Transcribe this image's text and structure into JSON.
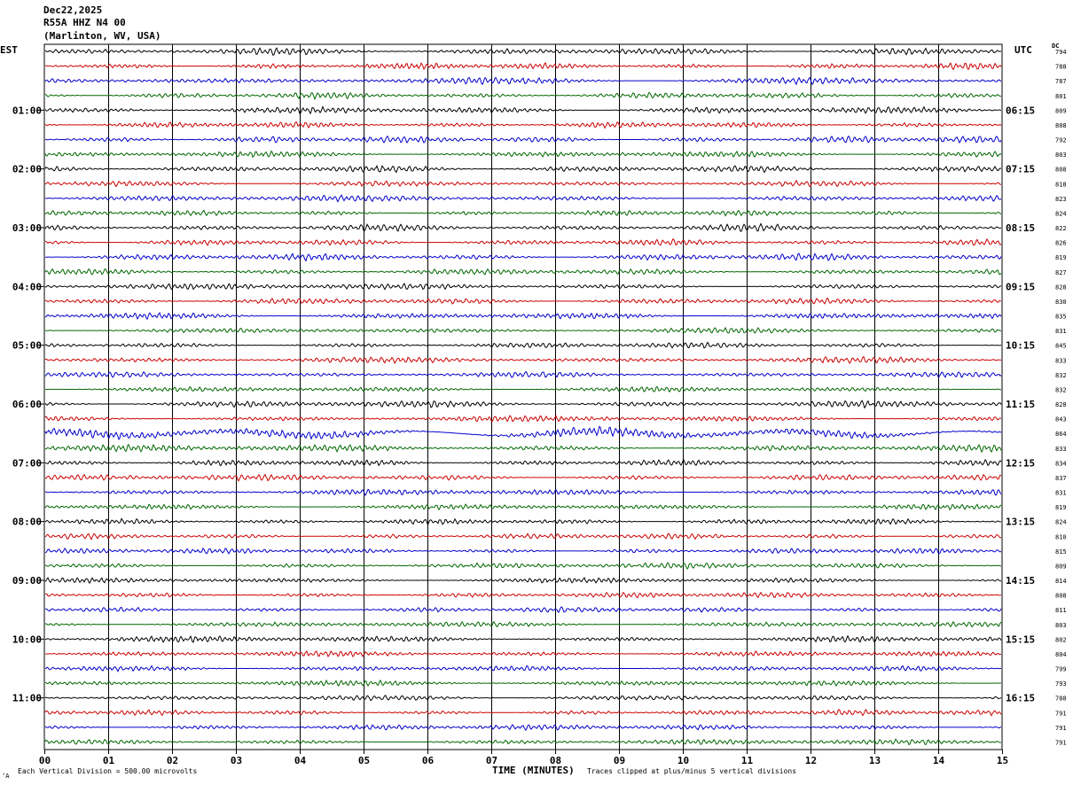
{
  "header": {
    "date": "Dec22,2025",
    "station": "R55A HHZ N4 00",
    "location": "(Marlinton, WV, USA)"
  },
  "left_timezone": "EST",
  "right_timezone": "UTC",
  "dc_label": "DC",
  "footer": {
    "division_note": "Each Vertical Division =  500.00 microvolts",
    "clip_note": "Traces clipped at plus/minus 5 vertical divisions",
    "corner_mark": "‘A"
  },
  "colors": {
    "cycle": [
      "#000000",
      "#cc0000",
      "#0000cc",
      "#006600"
    ],
    "grid": "#000000"
  },
  "chart_data": {
    "type": "line",
    "title": "",
    "xlabel": "TIME (MINUTES)",
    "xlim": [
      0,
      15
    ],
    "x_ticks": [
      "00",
      "01",
      "02",
      "03",
      "04",
      "05",
      "06",
      "07",
      "08",
      "09",
      "10",
      "11",
      "12",
      "13",
      "14",
      "15"
    ],
    "rows_per_hour": 4,
    "trace_count": 48,
    "left_hour_labels": [
      {
        "row": 4,
        "label": "01:00"
      },
      {
        "row": 8,
        "label": "02:00"
      },
      {
        "row": 12,
        "label": "03:00"
      },
      {
        "row": 16,
        "label": "04:00"
      },
      {
        "row": 20,
        "label": "05:00"
      },
      {
        "row": 24,
        "label": "06:00"
      },
      {
        "row": 28,
        "label": "07:00"
      },
      {
        "row": 32,
        "label": "08:00"
      },
      {
        "row": 36,
        "label": "09:00"
      },
      {
        "row": 40,
        "label": "10:00"
      },
      {
        "row": 44,
        "label": "11:00"
      }
    ],
    "right_hour_labels": [
      {
        "row": 4,
        "label": "06:15"
      },
      {
        "row": 8,
        "label": "07:15"
      },
      {
        "row": 12,
        "label": "08:15"
      },
      {
        "row": 16,
        "label": "09:15"
      },
      {
        "row": 20,
        "label": "10:15"
      },
      {
        "row": 24,
        "label": "11:15"
      },
      {
        "row": 28,
        "label": "12:15"
      },
      {
        "row": 32,
        "label": "13:15"
      },
      {
        "row": 36,
        "label": "14:15"
      },
      {
        "row": 40,
        "label": "15:15"
      },
      {
        "row": 44,
        "label": "16:15"
      }
    ],
    "dc_offsets": [
      "794",
      "788",
      "787",
      "801",
      "809",
      "808",
      "792",
      "803",
      "808",
      "818",
      "823",
      "824",
      "822",
      "826",
      "819",
      "827",
      "828",
      "830",
      "835",
      "831",
      "845",
      "833",
      "832",
      "832",
      "828",
      "843",
      "864",
      "833",
      "834",
      "837",
      "831",
      "819",
      "824",
      "810",
      "815",
      "809",
      "814",
      "808",
      "811",
      "803",
      "802",
      "804",
      "799",
      "793",
      "788",
      "791",
      "791",
      "791"
    ],
    "amplitude_divisions": [
      1.0,
      0.9,
      1.0,
      0.9,
      1.0,
      0.9,
      1.0,
      0.9,
      1.0,
      0.8,
      0.9,
      0.8,
      1.0,
      0.9,
      1.0,
      0.9,
      0.9,
      0.9,
      0.9,
      0.8,
      0.8,
      0.9,
      0.8,
      0.8,
      1.0,
      0.9,
      1.4,
      1.0,
      0.9,
      0.9,
      0.9,
      0.8,
      0.8,
      0.8,
      0.8,
      0.8,
      0.8,
      0.8,
      0.8,
      0.8,
      0.9,
      0.8,
      0.8,
      0.8,
      0.8,
      0.8,
      0.8,
      0.8
    ]
  }
}
